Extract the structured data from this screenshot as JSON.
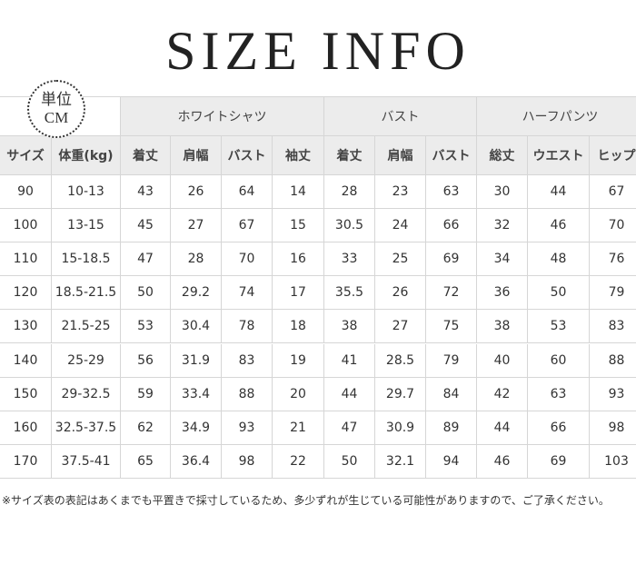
{
  "title": "SIZE INFO",
  "unit_badge": {
    "line1": "単位",
    "line2": "CM"
  },
  "groups": [
    "ホワイトシャツ",
    "バスト",
    "ハーフパンツ"
  ],
  "columns": [
    "サイズ",
    "体重(kg)",
    "着丈",
    "肩幅",
    "バスト",
    "袖丈",
    "着丈",
    "肩幅",
    "バスト",
    "総丈",
    "ウエスト",
    "ヒップ"
  ],
  "rows": [
    [
      90,
      "10-13",
      43,
      26,
      64,
      14,
      28,
      23,
      63,
      30,
      44,
      67
    ],
    [
      100,
      "13-15",
      45,
      27,
      67,
      15,
      30.5,
      24,
      66,
      32,
      46,
      70
    ],
    [
      110,
      "15-18.5",
      47,
      28,
      70,
      16,
      33,
      25,
      69,
      34,
      48,
      76
    ],
    [
      120,
      "18.5-21.5",
      50,
      29.2,
      74,
      17,
      35.5,
      26,
      72,
      36,
      50,
      79
    ],
    [
      130,
      "21.5-25",
      53,
      30.4,
      78,
      18,
      38,
      27,
      75,
      38,
      53,
      83
    ],
    [
      140,
      "25-29",
      56,
      31.9,
      83,
      19,
      41,
      28.5,
      79,
      40,
      60,
      88
    ],
    [
      150,
      "29-32.5",
      59,
      33.4,
      88,
      20,
      44,
      29.7,
      84,
      42,
      63,
      93
    ],
    [
      160,
      "32.5-37.5",
      62,
      34.9,
      93,
      21,
      47,
      30.9,
      89,
      44,
      66,
      98
    ],
    [
      170,
      "37.5-41",
      65,
      36.4,
      98,
      22,
      50,
      32.1,
      94,
      46,
      69,
      103
    ]
  ],
  "note": "※サイズ表の表記はあくまでも平置きで採寸しているため、多少ずれが生じている可能性がありますので、ご了承ください。"
}
